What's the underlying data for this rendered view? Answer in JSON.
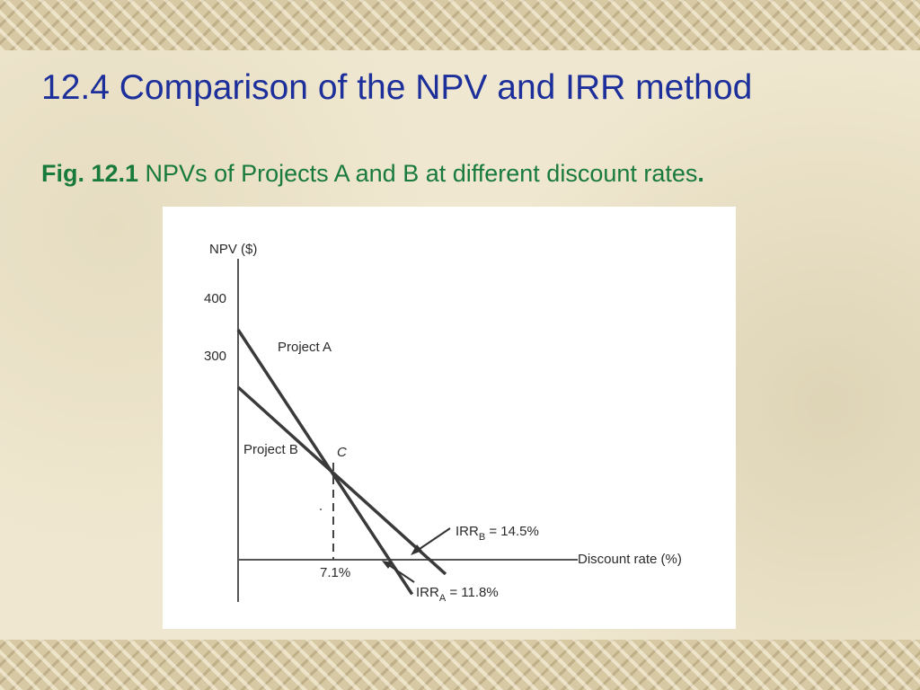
{
  "slide": {
    "title": "12.4 Comparison of the NPV and IRR method",
    "caption_label": "Fig. 12.1",
    "caption_text": " NPVs of Projects A and B at different discount rates",
    "caption_end": "."
  },
  "colors": {
    "title": "#1c2f9a",
    "caption": "#187a3c",
    "chart_line": "#3a3a3a"
  },
  "chart_data": {
    "type": "line",
    "xlabel": "Discount rate (%)",
    "ylabel": "NPV ($)",
    "y_ticks": [
      "400",
      "300"
    ],
    "series": [
      {
        "name": "Project A",
        "x": [
          0,
          13
        ],
        "y": [
          400,
          -60
        ]
      },
      {
        "name": "Project B",
        "x": [
          0,
          15.5
        ],
        "y": [
          300,
          -25
        ]
      }
    ],
    "annotations": {
      "crossover_label": "C",
      "crossover_rate": "7.1%",
      "irr_b_label": "IRR",
      "irr_b_sub": "B",
      "irr_b_value": " = 14.5%",
      "irr_a_label": "IRR",
      "irr_a_sub": "A",
      "irr_a_value": " = 11.8%"
    }
  }
}
